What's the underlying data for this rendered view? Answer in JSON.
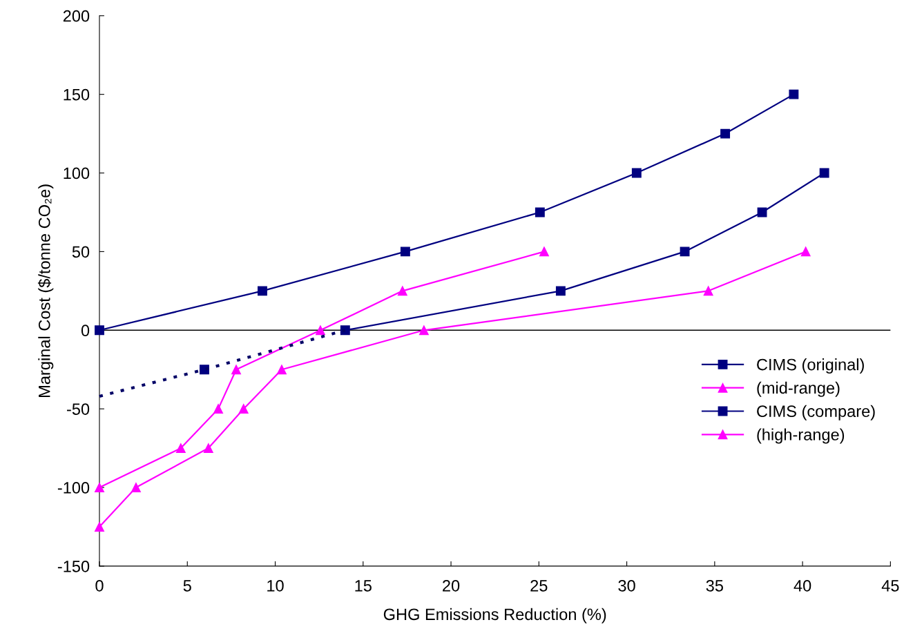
{
  "chart_data": {
    "type": "line",
    "xlabel": "GHG Emissions Reduction (%)",
    "ylabel": "Marginal Cost ($/tonne CO₂e)",
    "xlim": [
      0,
      45
    ],
    "xticks": [
      0,
      5,
      10,
      15,
      20,
      25,
      30,
      35,
      40,
      45
    ],
    "ylim": [
      -150,
      200
    ],
    "yticks": [
      -150,
      -100,
      -50,
      0,
      50,
      100,
      150,
      200
    ],
    "grid": false,
    "legend": "right",
    "ref_lines": [
      {
        "axis": "y",
        "value": 0,
        "color": "#000000"
      }
    ],
    "series": [
      {
        "name": "CIMS (original)",
        "color": "#000080",
        "marker": "square",
        "x": [
          0,
          9.27,
          17.4,
          25.06,
          30.56,
          35.6,
          39.5
        ],
        "values": [
          0,
          25,
          50,
          75,
          100,
          125,
          150
        ]
      },
      {
        "name": "(mid-range)",
        "color": "#ff00ff",
        "marker": "triangle",
        "x": [
          0,
          4.63,
          6.76,
          7.78,
          12.57,
          17.24,
          25.3
        ],
        "values": [
          -100,
          -75,
          -50,
          -25,
          0,
          25,
          50
        ]
      },
      {
        "name": "CIMS (compare)",
        "color": "#000080",
        "marker": "square",
        "x": [
          5.97,
          10,
          13.98,
          26.24,
          33.3,
          37.7,
          41.24
        ],
        "values": [
          -25,
          null,
          0,
          25,
          50,
          75,
          100
        ]
      },
      {
        "name": "(high-range)",
        "color": "#ff00ff",
        "marker": "triangle",
        "x": [
          0,
          2.08,
          6.2,
          8.2,
          10.37,
          18.46,
          34.64,
          40.18
        ],
        "values": [
          -125,
          -100,
          -75,
          -50,
          -25,
          0,
          25,
          50
        ]
      },
      {
        "color": "#000066",
        "marker": "none",
        "line_style": "dotted",
        "x": [
          0,
          5.97,
          13.98
        ],
        "values": [
          -42,
          -25,
          0
        ]
      }
    ]
  }
}
